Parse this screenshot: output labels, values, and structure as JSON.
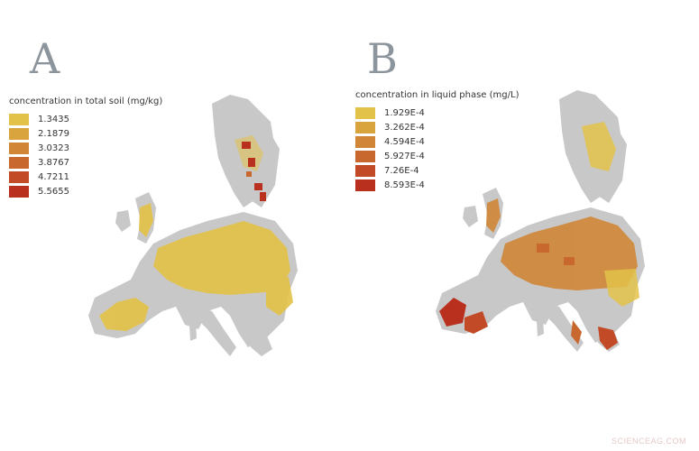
{
  "panel_a": {
    "letter": "A",
    "legend_title": "concentration in total soil (mg/kg)",
    "legend": [
      {
        "label": "1.3435",
        "color": "#e3c24a"
      },
      {
        "label": "2.1879",
        "color": "#d9a43e"
      },
      {
        "label": "3.0323",
        "color": "#d08636"
      },
      {
        "label": "3.8767",
        "color": "#c8682e"
      },
      {
        "label": "4.7211",
        "color": "#c24a26"
      },
      {
        "label": "5.5655",
        "color": "#b9301f"
      }
    ]
  },
  "panel_b": {
    "letter": "B",
    "legend_title": "concentration in liquid phase (mg/L)",
    "legend": [
      {
        "label": "1.929E-4",
        "color": "#e3c24a"
      },
      {
        "label": "3.262E-4",
        "color": "#d9a43e"
      },
      {
        "label": "4.594E-4",
        "color": "#d08636"
      },
      {
        "label": "5.927E-4",
        "color": "#c8682e"
      },
      {
        "label": "7.26E-4",
        "color": "#c24a26"
      },
      {
        "label": "8.593E-4",
        "color": "#b9301f"
      }
    ]
  },
  "colors": {
    "land_gray": "#c8c8c8"
  },
  "watermark": "SCIENCEAG.COM"
}
